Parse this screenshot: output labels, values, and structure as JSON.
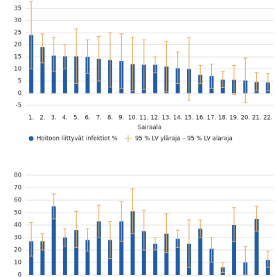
{
  "chart_data": [
    {
      "type": "bar",
      "categories": [
        "1.",
        "2.",
        "3.",
        "4.",
        "5.",
        "6.",
        "7.",
        "8.",
        "9.",
        "10.",
        "11.",
        "12.",
        "13.",
        "14.",
        "15.",
        "16.",
        "17.",
        "18.",
        "19.",
        "20.",
        "21.",
        "22."
      ],
      "x_label": "Sairaala",
      "ylim": [
        -5,
        38.5
      ],
      "yticks": [
        -5,
        0,
        5,
        10,
        15,
        20,
        25,
        30,
        35
      ],
      "grid": true,
      "series": [
        {
          "name": "Hoitoon liittyvät infektiot %",
          "color": "#1f5ba6",
          "values": [
            24,
            19,
            15.5,
            15.2,
            15.2,
            15,
            14.2,
            13.7,
            13.3,
            12,
            11.7,
            11.7,
            11,
            10.3,
            9.9,
            7.6,
            7,
            5.6,
            5.5,
            5.2,
            4.6,
            4.4
          ]
        },
        {
          "name": "95 % LV yläraja – 95 % LV alaraja",
          "color": "#e2a95a",
          "upper": [
            38,
            24.5,
            23,
            20,
            26.5,
            22,
            23.5,
            25,
            24.5,
            23,
            22,
            15,
            21.5,
            17,
            23,
            11.5,
            12,
            9,
            11.5,
            14.5,
            8.5,
            8
          ],
          "lower": [
            10,
            12.5,
            9,
            10,
            4,
            8,
            5,
            2.5,
            2,
            1,
            1.5,
            8.5,
            0.5,
            4,
            -3,
            4,
            2,
            2.3,
            -0.5,
            -4,
            1,
            1
          ]
        }
      ]
    },
    {
      "type": "bar",
      "categories": [
        null,
        null,
        null,
        null,
        null,
        null,
        null,
        null,
        null,
        null,
        null,
        null,
        null,
        null,
        null,
        null,
        null,
        null,
        null,
        null,
        null,
        null
      ],
      "ylim": [
        0,
        80
      ],
      "yticks": [
        0,
        10,
        20,
        30,
        40,
        50,
        60,
        70,
        80
      ],
      "grid": true,
      "series": [
        {
          "color": "#1f5ba6",
          "values": [
            27,
            27,
            55,
            30,
            36,
            28,
            43,
            28,
            43,
            51,
            35,
            25,
            33,
            29,
            25,
            37,
            21,
            6,
            40,
            10,
            45,
            12
          ]
        },
        {
          "color": "#e2a95a",
          "upper": [
            42,
            33,
            65,
            37,
            51,
            37,
            56,
            43,
            59,
            69,
            52,
            30,
            49,
            36,
            44,
            44,
            30,
            10,
            54,
            23,
            55,
            19
          ],
          "lower": [
            15,
            20,
            45,
            23,
            22,
            19,
            30,
            13,
            27,
            33,
            20,
            20,
            18,
            22,
            6,
            30,
            10,
            2,
            27,
            0,
            35,
            6
          ]
        }
      ]
    }
  ]
}
